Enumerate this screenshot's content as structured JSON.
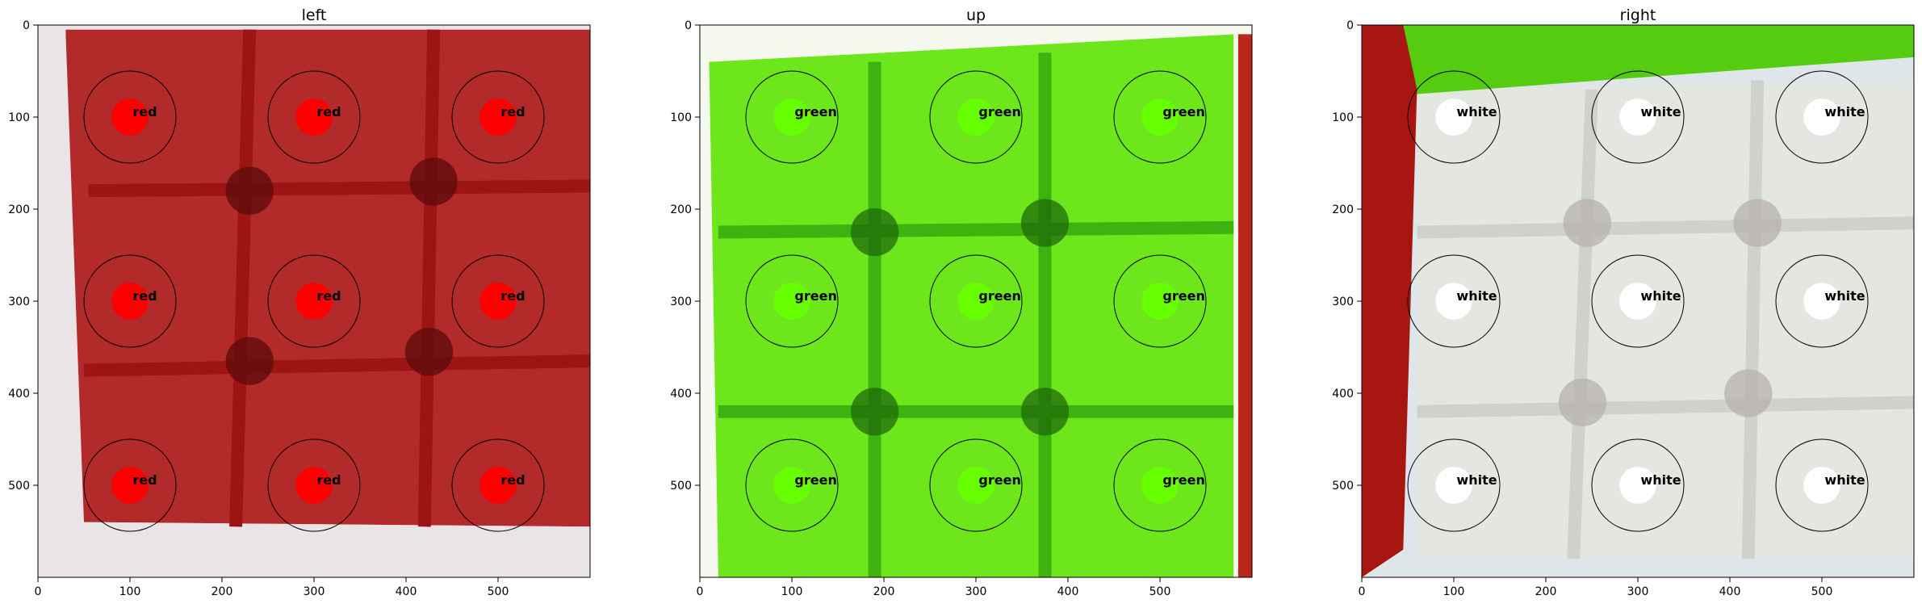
{
  "chart_data": [
    {
      "type": "image",
      "title": "left",
      "image_size": [
        600,
        600
      ],
      "xlim": [
        0,
        600
      ],
      "ylim": [
        600,
        0
      ],
      "xticks": [
        0,
        100,
        200,
        300,
        400,
        500
      ],
      "yticks": [
        0,
        100,
        200,
        300,
        400,
        500
      ],
      "grid": false,
      "legend": "none",
      "scene": {
        "face_color": "#b22a29",
        "grid_line_color": "#9c1414",
        "background_color": "#eae4e6",
        "face_corners": [
          [
            30,
            5
          ],
          [
            600,
            5
          ],
          [
            600,
            545
          ],
          [
            50,
            540
          ]
        ],
        "background_regions": [
          [
            [
              0,
              0
            ],
            [
              30,
              0
            ],
            [
              40,
              600
            ],
            [
              0,
              600
            ]
          ],
          [
            [
              40,
              540
            ],
            [
              600,
              545
            ],
            [
              600,
              600
            ],
            [
              40,
              600
            ]
          ]
        ],
        "grid_lines": [
          [
            [
              55,
              180
            ],
            [
              600,
              175
            ]
          ],
          [
            [
              50,
              375
            ],
            [
              600,
              365
            ]
          ],
          [
            [
              230,
              5
            ],
            [
              215,
              545
            ]
          ],
          [
            [
              430,
              5
            ],
            [
              420,
              545
            ]
          ]
        ],
        "dark_spots": [
          [
            230,
            180
          ],
          [
            430,
            170
          ],
          [
            230,
            365
          ],
          [
            425,
            355
          ]
        ],
        "spot_color": "#5c0a0a"
      },
      "samples": [
        {
          "x": 100,
          "y": 100,
          "label": "red",
          "color": "#ff0000"
        },
        {
          "x": 300,
          "y": 100,
          "label": "red",
          "color": "#ff0000"
        },
        {
          "x": 500,
          "y": 100,
          "label": "red",
          "color": "#ff0000"
        },
        {
          "x": 100,
          "y": 300,
          "label": "red",
          "color": "#ff0000"
        },
        {
          "x": 300,
          "y": 300,
          "label": "red",
          "color": "#ff0000"
        },
        {
          "x": 500,
          "y": 300,
          "label": "red",
          "color": "#ff0000"
        },
        {
          "x": 100,
          "y": 500,
          "label": "red",
          "color": "#ff0000"
        },
        {
          "x": 300,
          "y": 500,
          "label": "red",
          "color": "#ff0000"
        },
        {
          "x": 500,
          "y": 500,
          "label": "red",
          "color": "#ff0000"
        }
      ],
      "ring_radius": 50,
      "dot_radius": 20
    },
    {
      "type": "image",
      "title": "up",
      "image_size": [
        600,
        600
      ],
      "xlim": [
        0,
        600
      ],
      "ylim": [
        600,
        0
      ],
      "xticks": [
        0,
        100,
        200,
        300,
        400,
        500
      ],
      "yticks": [
        0,
        100,
        200,
        300,
        400,
        500
      ],
      "grid": false,
      "legend": "none",
      "scene": {
        "face_color": "#6ee61c",
        "grid_line_color": "#3db30f",
        "background_color": "#f4f8ef",
        "face_corners": [
          [
            10,
            40
          ],
          [
            580,
            10
          ],
          [
            580,
            600
          ],
          [
            20,
            600
          ]
        ],
        "background_regions": [
          [
            [
              0,
              0
            ],
            [
              600,
              0
            ],
            [
              580,
              10
            ],
            [
              10,
              40
            ],
            [
              0,
              40
            ]
          ],
          [
            [
              0,
              40
            ],
            [
              10,
              40
            ],
            [
              20,
              600
            ],
            [
              0,
              600
            ]
          ]
        ],
        "edge_strip": {
          "color": "#b8271a",
          "polygon": [
            [
              585,
              10
            ],
            [
              600,
              10
            ],
            [
              600,
              600
            ],
            [
              585,
              600
            ]
          ]
        },
        "grid_lines": [
          [
            [
              20,
              225
            ],
            [
              580,
              220
            ]
          ],
          [
            [
              20,
              420
            ],
            [
              580,
              420
            ]
          ],
          [
            [
              190,
              40
            ],
            [
              190,
              600
            ]
          ],
          [
            [
              375,
              30
            ],
            [
              375,
              600
            ]
          ]
        ],
        "dark_spots": [
          [
            190,
            225
          ],
          [
            375,
            215
          ],
          [
            190,
            420
          ],
          [
            375,
            420
          ]
        ],
        "spot_color": "#1f6a0b"
      },
      "samples": [
        {
          "x": 100,
          "y": 100,
          "label": "green",
          "color": "#66ff00"
        },
        {
          "x": 300,
          "y": 100,
          "label": "green",
          "color": "#66ff00"
        },
        {
          "x": 500,
          "y": 100,
          "label": "green",
          "color": "#66ff00"
        },
        {
          "x": 100,
          "y": 300,
          "label": "green",
          "color": "#66ff00"
        },
        {
          "x": 300,
          "y": 300,
          "label": "green",
          "color": "#66ff00"
        },
        {
          "x": 500,
          "y": 300,
          "label": "green",
          "color": "#66ff00"
        },
        {
          "x": 100,
          "y": 500,
          "label": "green",
          "color": "#66ff00"
        },
        {
          "x": 300,
          "y": 500,
          "label": "green",
          "color": "#66ff00"
        },
        {
          "x": 500,
          "y": 500,
          "label": "green",
          "color": "#66ff00"
        }
      ],
      "ring_radius": 50,
      "dot_radius": 20
    },
    {
      "type": "image",
      "title": "right",
      "image_size": [
        600,
        600
      ],
      "xlim": [
        0,
        600
      ],
      "ylim": [
        600,
        0
      ],
      "xticks": [
        0,
        100,
        200,
        300,
        400,
        500
      ],
      "yticks": [
        0,
        100,
        200,
        300,
        400,
        500
      ],
      "grid": false,
      "legend": "none",
      "scene": {
        "face_color": "#e4e6e2",
        "grid_line_color": "#cfd1cd",
        "background_color": "#dfe6ea",
        "face_corners": [
          [
            60,
            70
          ],
          [
            600,
            60
          ],
          [
            600,
            580
          ],
          [
            60,
            580
          ]
        ],
        "background_regions": [
          [
            [
              40,
              580
            ],
            [
              600,
              580
            ],
            [
              600,
              600
            ],
            [
              40,
              600
            ]
          ]
        ],
        "top_strip": {
          "color": "#55cc10",
          "polygon": [
            [
              40,
              0
            ],
            [
              600,
              0
            ],
            [
              600,
              35
            ],
            [
              60,
              75
            ],
            [
              40,
              75
            ]
          ]
        },
        "edge_strip": {
          "color": "#a81612",
          "polygon": [
            [
              0,
              0
            ],
            [
              45,
              0
            ],
            [
              60,
              70
            ],
            [
              45,
              570
            ],
            [
              0,
              600
            ]
          ]
        },
        "grid_lines": [
          [
            [
              60,
              225
            ],
            [
              600,
              215
            ]
          ],
          [
            [
              60,
              420
            ],
            [
              600,
              410
            ]
          ],
          [
            [
              250,
              70
            ],
            [
              230,
              580
            ]
          ],
          [
            [
              430,
              60
            ],
            [
              420,
              580
            ]
          ]
        ],
        "dark_spots": [
          [
            245,
            215
          ],
          [
            430,
            215
          ],
          [
            240,
            410
          ],
          [
            420,
            400
          ]
        ],
        "spot_color": "#b5b0ad"
      },
      "samples": [
        {
          "x": 100,
          "y": 100,
          "label": "white",
          "color": "#ffffff"
        },
        {
          "x": 300,
          "y": 100,
          "label": "white",
          "color": "#ffffff"
        },
        {
          "x": 500,
          "y": 100,
          "label": "white",
          "color": "#ffffff"
        },
        {
          "x": 100,
          "y": 300,
          "label": "white",
          "color": "#ffffff"
        },
        {
          "x": 300,
          "y": 300,
          "label": "white",
          "color": "#ffffff"
        },
        {
          "x": 500,
          "y": 300,
          "label": "white",
          "color": "#ffffff"
        },
        {
          "x": 100,
          "y": 500,
          "label": "white",
          "color": "#ffffff"
        },
        {
          "x": 300,
          "y": 500,
          "label": "white",
          "color": "#ffffff"
        },
        {
          "x": 500,
          "y": 500,
          "label": "white",
          "color": "#ffffff"
        }
      ],
      "ring_radius": 50,
      "dot_radius": 20
    }
  ]
}
